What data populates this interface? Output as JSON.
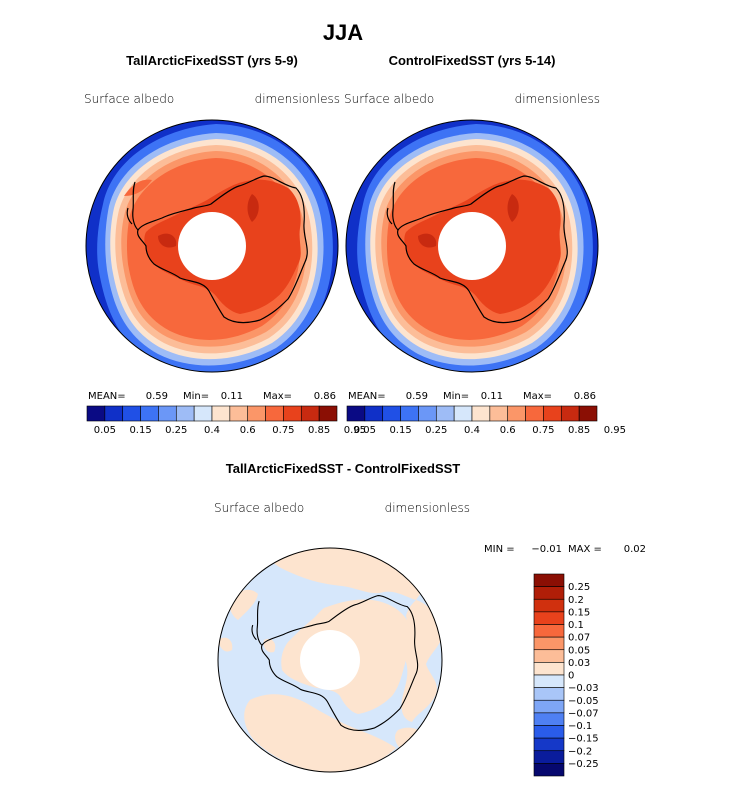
{
  "title": "JJA",
  "panels": [
    {
      "subtitle": "TallArcticFixedSST (yrs 5-9)",
      "left_label": "Surface albedo",
      "right_label": "dimensionless",
      "mean_label": "MEAN=",
      "mean": "0.59",
      "min_label": "Min=",
      "min": "0.11",
      "max_label": "Max=",
      "max": "0.86"
    },
    {
      "subtitle": "ControlFixedSST (yrs 5-14)",
      "left_label": "Surface albedo",
      "right_label": "dimensionless",
      "mean_label": "MEAN=",
      "mean": "0.59",
      "min_label": "Min=",
      "min": "0.11",
      "max_label": "Max=",
      "max": "0.86"
    }
  ],
  "diff_panel": {
    "subtitle": "TallArcticFixedSST - ControlFixedSST",
    "left_label": "Surface albedo",
    "right_label": "dimensionless",
    "min_label": "MIN =",
    "min": "−0.01",
    "max_label": "MAX =",
    "max": "0.02"
  },
  "chart_data": [
    {
      "type": "heatmap",
      "map": "polar-stereographic south pole",
      "title": "TallArcticFixedSST (yrs 5-9)",
      "variable": "Surface albedo",
      "units": "dimensionless",
      "stats": {
        "mean": 0.59,
        "min": 0.11,
        "max": 0.86
      },
      "colorbar_ticks": [
        "0.05",
        "0.15",
        "0.25",
        "0.4",
        "0.6",
        "0.75",
        "0.85",
        "0.95"
      ],
      "colorbar_colors": [
        "#0a0a84",
        "#1030c8",
        "#2050e6",
        "#3d73f5",
        "#6b97f7",
        "#9ebcf6",
        "#d6e7fb",
        "#fde4cf",
        "#fcbd98",
        "#fb9668",
        "#f7683c",
        "#e8421c",
        "#c82a10",
        "#8b0f04"
      ]
    },
    {
      "type": "heatmap",
      "map": "polar-stereographic south pole",
      "title": "ControlFixedSST (yrs 5-14)",
      "variable": "Surface albedo",
      "units": "dimensionless",
      "stats": {
        "mean": 0.59,
        "min": 0.11,
        "max": 0.86
      },
      "colorbar_ticks": [
        "0.05",
        "0.15",
        "0.25",
        "0.4",
        "0.6",
        "0.75",
        "0.85",
        "0.95"
      ],
      "colorbar_colors": [
        "#0a0a84",
        "#1030c8",
        "#2050e6",
        "#3d73f5",
        "#6b97f7",
        "#9ebcf6",
        "#d6e7fb",
        "#fde4cf",
        "#fcbd98",
        "#fb9668",
        "#f7683c",
        "#e8421c",
        "#c82a10",
        "#8b0f04"
      ]
    },
    {
      "type": "heatmap",
      "map": "polar-stereographic south pole",
      "title": "TallArcticFixedSST - ControlFixedSST",
      "variable": "Surface albedo",
      "units": "dimensionless",
      "stats": {
        "min": -0.01,
        "max": 0.02
      },
      "colorbar_ticks": [
        "0.25",
        "0.2",
        "0.15",
        "0.1",
        "0.07",
        "0.05",
        "0.03",
        "0",
        "−0.03",
        "−0.05",
        "−0.07",
        "−0.1",
        "−0.15",
        "−0.2",
        "−0.25"
      ],
      "colorbar_colors": [
        "#8b0f04",
        "#b01e08",
        "#d0300e",
        "#e8421c",
        "#f7683c",
        "#fb9668",
        "#fcbd98",
        "#fde4cf",
        "#d6e7fb",
        "#a9c6f8",
        "#7ea6f6",
        "#4f80f3",
        "#2a5cea",
        "#1538c8",
        "#0a1c9c",
        "#06086e"
      ]
    }
  ]
}
